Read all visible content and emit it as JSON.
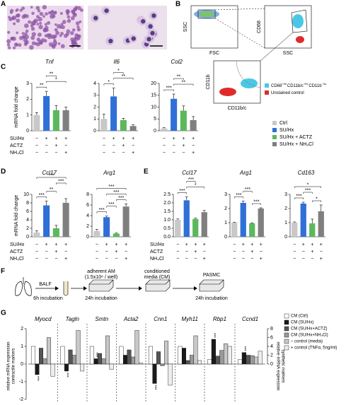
{
  "panel_labels": [
    "A",
    "B",
    "C",
    "D",
    "E",
    "F",
    "G"
  ],
  "flow": {
    "axis_labels": [
      "SSC",
      "FSC",
      "CD68",
      "SSC",
      "CD11b",
      "CD11b/c"
    ],
    "legend": [
      {
        "parts": [
          "CD68",
          "+/hi",
          "CD11b/c",
          "+/hi",
          "CD11b",
          "−/lo"
        ],
        "color": "#49c8e6"
      },
      {
        "parts": [
          "Unstained control"
        ],
        "color": "#e02a2a"
      }
    ]
  },
  "condition_legend": [
    {
      "name": "Ctrl",
      "color": "#c8c8c8"
    },
    {
      "name": "SU/Hx",
      "color": "#2f6fd8"
    },
    {
      "name": "SU/Hx + ACTZ",
      "color": "#5cb85c"
    },
    {
      "name": "SU/Hx + NH₄Cl",
      "color": "#7f7f7f"
    }
  ],
  "treatment_tables": [
    {
      "rows": [
        {
          "label": "SU/Hx",
          "marks": [
            "−",
            "+",
            "+",
            "+"
          ]
        },
        {
          "label": "ACTZ",
          "marks": [
            "−",
            "−",
            "+",
            "−"
          ]
        },
        {
          "label": "NH₄Cl",
          "marks": [
            "−",
            "−",
            "−",
            "+"
          ]
        }
      ]
    },
    {
      "rows": [
        {
          "label": "SU/Hx",
          "marks": [
            "−",
            "+",
            "+",
            "+"
          ]
        },
        {
          "label": "ACTZ",
          "marks": [
            "−",
            "−",
            "+",
            "−"
          ]
        },
        {
          "label": "NH₄Cl",
          "marks": [
            "−",
            "−",
            "−",
            "+"
          ]
        }
      ]
    },
    {
      "rows": [
        {
          "label": "SU/Hx",
          "marks": [
            "−",
            "+",
            "+",
            "+"
          ]
        },
        {
          "label": "ACTZ",
          "marks": [
            "−",
            "−",
            "+",
            "−"
          ]
        },
        {
          "label": "NH₄Cl",
          "marks": [
            "−",
            "−",
            "−",
            "+"
          ]
        }
      ]
    }
  ],
  "workflow": {
    "texts": [
      "BALF",
      "6h incubation",
      "adherent AM",
      "(1.5x10⁶ / well)",
      "24h incubation",
      "conditioned",
      "media (CM)",
      "PASMC",
      "24h incubation"
    ]
  },
  "chart_data": [
    {
      "type": "bar",
      "title": "Tnf",
      "ylabel": "mRNA fold change",
      "colors": [
        "#c8c8c8",
        "#2f6fd8",
        "#5cb85c",
        "#7f7f7f"
      ],
      "values": [
        1.0,
        2.2,
        1.3,
        1.3
      ],
      "errors": [
        0.15,
        0.3,
        0.3,
        0.2
      ],
      "ylim": [
        0,
        3
      ],
      "yticks": [
        0,
        1,
        2,
        3
      ],
      "significance": [
        {
          "groups": [
            0,
            1
          ],
          "label": "**"
        },
        {
          "groups": [
            1,
            3
          ],
          "label": "*"
        },
        {
          "groups": [
            1,
            2
          ],
          "label": "**"
        }
      ]
    },
    {
      "type": "bar",
      "title": "Il6",
      "colors": [
        "#c8c8c8",
        "#2f6fd8",
        "#5cb85c",
        "#7f7f7f"
      ],
      "values": [
        1.0,
        2.9,
        0.9,
        0.4
      ],
      "errors": [
        0.4,
        0.7,
        0.15,
        0.1
      ],
      "ylim": [
        0,
        4
      ],
      "yticks": [
        0,
        1,
        2,
        3,
        4
      ],
      "significance": [
        {
          "groups": [
            0,
            1
          ],
          "label": "*"
        },
        {
          "groups": [
            1,
            3
          ],
          "label": "**"
        },
        {
          "groups": [
            1,
            2
          ],
          "label": "*"
        }
      ]
    },
    {
      "type": "bar",
      "title": "Col2",
      "colors": [
        "#c8c8c8",
        "#2f6fd8",
        "#5cb85c",
        "#7f7f7f"
      ],
      "values": [
        1.0,
        13.5,
        8.5,
        4.5
      ],
      "errors": [
        0.3,
        2.0,
        2.0,
        1.5
      ],
      "ylim": [
        0,
        20
      ],
      "yticks": [
        0,
        5,
        10,
        15,
        20
      ],
      "significance": [
        {
          "groups": [
            0,
            1
          ],
          "label": "***"
        },
        {
          "groups": [
            1,
            3
          ],
          "label": "**"
        },
        {
          "groups": [
            1,
            2
          ],
          "label": "**"
        }
      ]
    },
    {
      "type": "bar",
      "title": "Ccl17",
      "ylabel": "mRNA fold change",
      "colors": [
        "#c8c8c8",
        "#2f6fd8",
        "#5cb85c",
        "#7f7f7f"
      ],
      "values": [
        1.0,
        7.4,
        2.0,
        8.0
      ],
      "errors": [
        0.4,
        1.0,
        0.7,
        1.0
      ],
      "ylim": [
        0,
        10
      ],
      "yticks": [
        0,
        2,
        4,
        6,
        8,
        10
      ],
      "significance": [
        {
          "groups": [
            0,
            1
          ],
          "label": "***"
        },
        {
          "groups": [
            1,
            2
          ],
          "label": "**"
        },
        {
          "groups": [
            2,
            3
          ],
          "label": "***"
        },
        {
          "groups": [
            0,
            3
          ],
          "label": "***"
        }
      ]
    },
    {
      "type": "bar",
      "title": "Arg1",
      "colors": [
        "#c8c8c8",
        "#2f6fd8",
        "#5cb85c",
        "#7f7f7f"
      ],
      "values": [
        1.1,
        3.7,
        0.6,
        5.7
      ],
      "errors": [
        0.3,
        0.2,
        0.1,
        0.5
      ],
      "ylim": [
        0,
        8
      ],
      "yticks": [
        0,
        2,
        4,
        6,
        8
      ],
      "significance": [
        {
          "groups": [
            0,
            1
          ],
          "label": "***"
        },
        {
          "groups": [
            1,
            2
          ],
          "label": "***"
        },
        {
          "groups": [
            2,
            3
          ],
          "label": "***"
        },
        {
          "groups": [
            1,
            3
          ],
          "label": "***"
        },
        {
          "groups": [
            0,
            3
          ],
          "label": "***"
        }
      ]
    },
    {
      "type": "bar",
      "title": "Ccl17",
      "colors": [
        "#c8c8c8",
        "#2f6fd8",
        "#5cb85c",
        "#7f7f7f"
      ],
      "values": [
        1.0,
        2.15,
        1.05,
        1.45
      ],
      "errors": [
        0.05,
        0.2,
        0.05,
        0.1
      ],
      "ylim": [
        0,
        2.5
      ],
      "yticks": [
        {
          "value": 0,
          "label": "0.0"
        },
        0.5,
        {
          "value": 1,
          "label": "1.0"
        },
        1.5,
        {
          "value": 2,
          "label": "2.0"
        },
        2.5
      ],
      "significance": [
        {
          "groups": [
            0,
            1
          ],
          "label": "***"
        },
        {
          "groups": [
            1,
            3
          ],
          "label": "*"
        },
        {
          "groups": [
            1,
            2
          ],
          "label": "***"
        }
      ]
    },
    {
      "type": "bar",
      "title": "Arg1",
      "colors": [
        "#c8c8c8",
        "#2f6fd8",
        "#5cb85c",
        "#7f7f7f"
      ],
      "values": [
        1.0,
        2.4,
        0.95,
        2.0
      ],
      "errors": [
        0.03,
        0.12,
        0.04,
        0.05
      ],
      "ylim": [
        0,
        3
      ],
      "yticks": [
        0,
        1,
        2,
        3
      ],
      "significance": [
        {
          "groups": [
            0,
            1
          ],
          "label": "***"
        },
        {
          "groups": [
            1,
            2
          ],
          "label": "***"
        },
        {
          "groups": [
            2,
            3
          ],
          "label": "***"
        }
      ]
    },
    {
      "type": "bar",
      "title": "Cd163",
      "colors": [
        "#c8c8c8",
        "#2f6fd8",
        "#5cb85c",
        "#7f7f7f"
      ],
      "values": [
        1.0,
        2.35,
        0.95,
        1.8
      ],
      "errors": [
        0.05,
        0.1,
        0.3,
        0.45
      ],
      "ylim": [
        0,
        3
      ],
      "yticks": [
        0,
        1,
        2,
        3
      ],
      "significance": [
        {
          "groups": [
            0,
            1
          ],
          "label": "***"
        },
        {
          "groups": [
            1,
            2
          ],
          "label": "***"
        },
        {
          "groups": [
            2,
            3
          ],
          "label": "*"
        },
        {
          "groups": [
            0,
            3
          ],
          "label": "*"
        }
      ]
    },
    {
      "type": "grouped_bar",
      "axis_side": "left",
      "ylabel": [
        "relative mRNA expression",
        "contractile markers"
      ],
      "categories": [
        "Myocd",
        "Tagln",
        "Smtn",
        "Acta2",
        "Cnn1",
        "Myh11"
      ],
      "ylim": [
        -2,
        2
      ],
      "yticks": [
        -2,
        -1,
        0,
        1,
        2
      ],
      "series": [
        {
          "name": "CM (Ctrl)",
          "color": "#ffffff",
          "values": [
            1.0,
            1.0,
            1.0,
            1.0,
            1.0,
            1.0
          ]
        },
        {
          "name": "CM (SU/Hx)",
          "color": "#1a1a1a",
          "values": [
            -0.6,
            -0.4,
            0.3,
            0.5,
            -1.1,
            0.9
          ]
        },
        {
          "name": "CM (SU/Hx+ACTZ)",
          "color": "#555555",
          "values": [
            0.9,
            0.8,
            0.6,
            0.8,
            0.7,
            0.2
          ]
        },
        {
          "name": "CM (SU/Hx+NH₄Cl)",
          "color": "#9a9a9a",
          "values": [
            0.3,
            0.5,
            0.3,
            0.4,
            -0.1,
            0.5
          ]
        },
        {
          "name": "– control (media)",
          "color": "#c8c8c8",
          "values": [
            1.5,
            1.9,
            1.6,
            1.9,
            1.3,
            1.6
          ]
        },
        {
          "name": "+ control (TNFα, 5ng/ml)",
          "color": "#eeeeee",
          "values": [
            -0.7,
            -0.4,
            -0.3,
            0.05,
            -1.2,
            0.2
          ]
        }
      ],
      "annotations": [
        {
          "category": 0,
          "series": 1,
          "label": "***"
        },
        {
          "category": 1,
          "series": 1,
          "label": "***"
        },
        {
          "category": 2,
          "series": 1,
          "label": "***"
        },
        {
          "category": 4,
          "series": 1,
          "label": "***"
        }
      ]
    },
    {
      "type": "grouped_bar",
      "axis_side": "right",
      "ylabel": [
        "relative mRNA expression",
        "synthetic markers"
      ],
      "categories": [
        "Rbp1",
        "Ccnd1"
      ],
      "ylim": [
        0,
        8
      ],
      "yticks": [
        0,
        2,
        4,
        6,
        8
      ],
      "series": [
        {
          "color": "#ffffff",
          "values": [
            1.0,
            1.0
          ]
        },
        {
          "color": "#1a1a1a",
          "values": [
            5.6,
            2.6
          ]
        },
        {
          "color": "#555555",
          "values": [
            1.8,
            2.0
          ]
        },
        {
          "color": "#9a9a9a",
          "values": [
            3.1,
            1.9
          ]
        },
        {
          "color": "#c8c8c8",
          "values": [
            4.6,
            1.6
          ]
        },
        {
          "color": "#eeeeee",
          "values": [
            4.0,
            2.9
          ]
        }
      ],
      "annotations": [
        {
          "category": 0,
          "series": 1,
          "label": "***"
        },
        {
          "category": 1,
          "series": 1,
          "label": "***"
        }
      ]
    }
  ]
}
